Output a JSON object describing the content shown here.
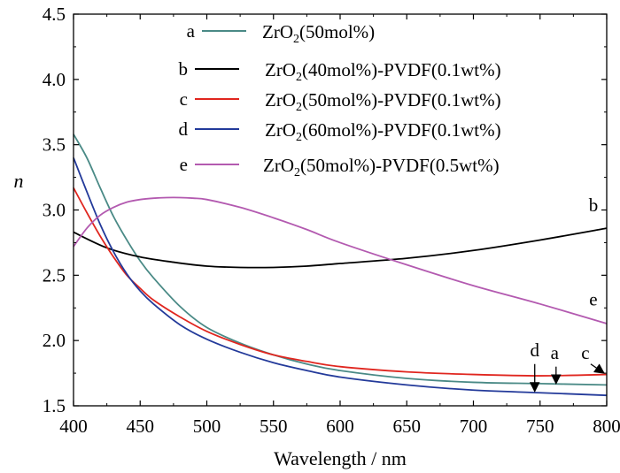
{
  "chart_data": {
    "type": "line",
    "xlabel": "Wavelength / nm",
    "ylabel": "n",
    "xlim": [
      400,
      800
    ],
    "ylim": [
      1.5,
      4.5
    ],
    "x_ticks": [
      "400",
      "450",
      "500",
      "550",
      "600",
      "650",
      "700",
      "750",
      "800"
    ],
    "y_ticks": [
      "1.5",
      "2.0",
      "2.5",
      "3.0",
      "3.5",
      "4.0",
      "4.5"
    ],
    "grid": false,
    "legend_position": "top-center",
    "series": [
      {
        "letter": "a",
        "name_main": "ZrO",
        "name_sub": "2",
        "name_rest": "(50mol%)",
        "color": "#4a8a86",
        "x": [
          400,
          410,
          420,
          430,
          440,
          450,
          460,
          480,
          500,
          525,
          550,
          575,
          600,
          650,
          700,
          750,
          800
        ],
        "y": [
          3.58,
          3.4,
          3.17,
          2.95,
          2.77,
          2.61,
          2.48,
          2.26,
          2.1,
          1.98,
          1.89,
          1.82,
          1.77,
          1.71,
          1.68,
          1.67,
          1.66
        ]
      },
      {
        "letter": "b",
        "name_main": "ZrO",
        "name_sub": "2",
        "name_rest": "(40mol%)-PVDF(0.1wt%)",
        "color": "#000000",
        "x": [
          400,
          425,
          450,
          475,
          500,
          525,
          550,
          575,
          600,
          650,
          700,
          750,
          800
        ],
        "y": [
          2.83,
          2.71,
          2.64,
          2.6,
          2.57,
          2.56,
          2.56,
          2.57,
          2.59,
          2.63,
          2.69,
          2.77,
          2.86
        ]
      },
      {
        "letter": "c",
        "name_main": "ZrO",
        "name_sub": "2",
        "name_rest": "(50mol%)-PVDF(0.1wt%)",
        "color": "#e0261f",
        "x": [
          400,
          410,
          420,
          430,
          440,
          450,
          460,
          480,
          500,
          525,
          550,
          575,
          600,
          650,
          700,
          750,
          800
        ],
        "y": [
          3.17,
          2.98,
          2.8,
          2.64,
          2.5,
          2.4,
          2.31,
          2.18,
          2.07,
          1.97,
          1.89,
          1.84,
          1.8,
          1.76,
          1.74,
          1.73,
          1.74
        ]
      },
      {
        "letter": "d",
        "name_main": "ZrO",
        "name_sub": "2",
        "name_rest": "(60mol%)-PVDF(0.1wt%)",
        "color": "#233a9a",
        "x": [
          400,
          410,
          420,
          430,
          440,
          450,
          460,
          480,
          500,
          525,
          550,
          575,
          600,
          650,
          700,
          750,
          800
        ],
        "y": [
          3.4,
          3.14,
          2.89,
          2.68,
          2.51,
          2.38,
          2.28,
          2.12,
          2.01,
          1.91,
          1.83,
          1.77,
          1.72,
          1.66,
          1.62,
          1.6,
          1.58
        ]
      },
      {
        "letter": "e",
        "name_main": "ZrO",
        "name_sub": "2",
        "name_rest": "(50mol%)-PVDF(0.5wt%)",
        "color": "#b35ab0",
        "x": [
          400,
          410,
          420,
          430,
          440,
          450,
          460,
          470,
          480,
          490,
          500,
          525,
          550,
          575,
          600,
          650,
          700,
          750,
          800
        ],
        "y": [
          2.72,
          2.86,
          2.96,
          3.02,
          3.06,
          3.08,
          3.09,
          3.095,
          3.095,
          3.09,
          3.08,
          3.02,
          2.94,
          2.85,
          2.75,
          2.58,
          2.42,
          2.28,
          2.13
        ]
      }
    ],
    "curve_tags": [
      {
        "text": "b",
        "x": 790,
        "y": 2.99
      },
      {
        "text": "e",
        "x": 790,
        "y": 2.27
      },
      {
        "text": "d",
        "x": 746,
        "y": 1.88
      },
      {
        "text": "a",
        "x": 761,
        "y": 1.86
      },
      {
        "text": "c",
        "x": 784,
        "y": 1.86
      }
    ],
    "arrows": [
      {
        "x": 746,
        "y_from": 1.82,
        "y_to": 1.61
      },
      {
        "x": 762,
        "y_from": 1.8,
        "y_to": 1.67
      },
      {
        "x1": 788,
        "y1": 1.82,
        "x2": 798,
        "y2": 1.75
      }
    ]
  }
}
